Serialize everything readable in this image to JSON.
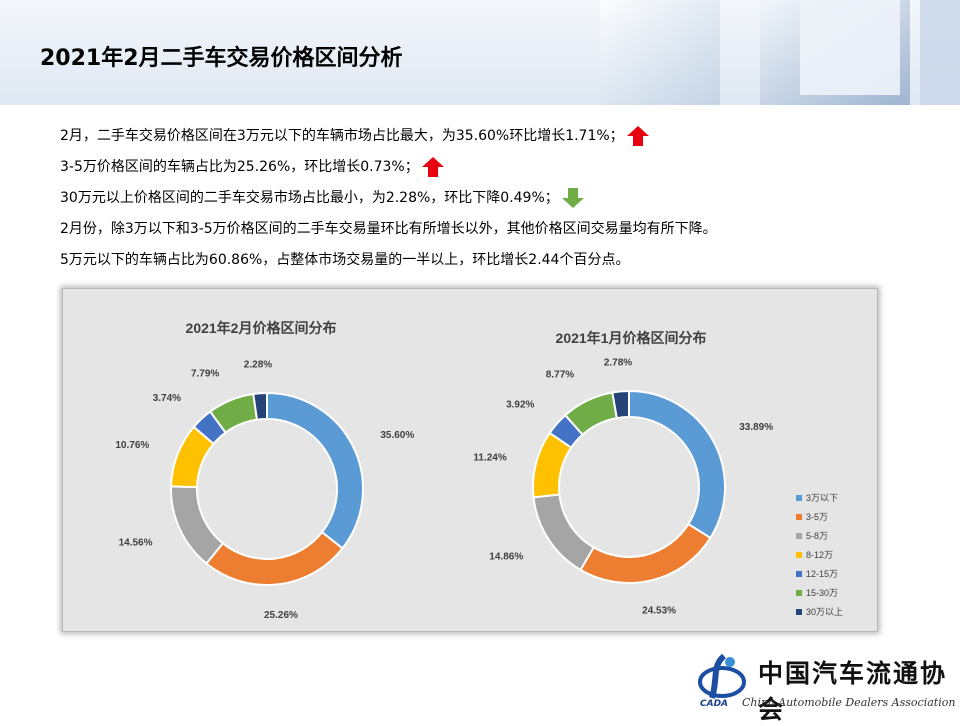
{
  "title": "2021年2月二手车交易价格区间分析",
  "bullets": [
    {
      "text": "2月，二手车交易价格区间在3万元以下的车辆市场占比最大，为35.60%环比增长1.71%；",
      "arrow": "up-arrow-icon"
    },
    {
      "text": "3-5万价格区间的车辆占比为25.26%，环比增长0.73%；",
      "arrow": "up-arrow-icon"
    },
    {
      "text": "30万元以上价格区间的二手车交易市场占比最小，为2.28%，环比下降0.49%；",
      "arrow": "down-arrow-icon"
    },
    {
      "text": "2月份，除3万以下和3-5万价格区间的二手车交易量环比有所增长以外，其他价格区间交易量均有所下降。",
      "arrow": null
    },
    {
      "text": "5万元以下的车辆占比为60.86%，占整体市场交易量的一半以上，环比增长2.44个百分点。",
      "arrow": null
    }
  ],
  "colors": {
    "up_arrow": "#e60012",
    "down_arrow": "#70ad47"
  },
  "chart_data": [
    {
      "type": "pie",
      "title": "2021年2月价格区间分布",
      "categories": [
        "3万以下",
        "3-5万",
        "5-8万",
        "8-12万",
        "12-15万",
        "15-30万",
        "30万以上"
      ],
      "values": [
        35.6,
        25.26,
        14.56,
        10.76,
        3.74,
        7.79,
        2.28
      ],
      "labels": [
        "35.60%",
        "25.26%",
        "14.56%",
        "10.76%",
        "3.74%",
        "7.79%",
        "2.28%"
      ]
    },
    {
      "type": "pie",
      "title": "2021年1月价格区间分布",
      "categories": [
        "3万以下",
        "3-5万",
        "5-8万",
        "8-12万",
        "12-15万",
        "15-30万",
        "30万以上"
      ],
      "values": [
        33.89,
        24.53,
        14.86,
        11.24,
        3.92,
        8.77,
        2.78
      ],
      "labels": [
        "33.89%",
        "24.53%",
        "14.86%",
        "11.24%",
        "3.92%",
        "8.77%",
        "2.78%"
      ]
    }
  ],
  "series_colors": [
    "#5b9bd5",
    "#ed7d31",
    "#a5a5a5",
    "#ffc000",
    "#4472c4",
    "#70ad47",
    "#264478"
  ],
  "legend": {
    "position": "right",
    "items": [
      "3万以下",
      "3-5万",
      "5-8万",
      "8-12万",
      "12-15万",
      "15-30万",
      "30万以上"
    ]
  },
  "logo": {
    "cn": "中国汽车流通协会",
    "en": "China Automobile Dealers Association",
    "abbr": "CADA"
  }
}
